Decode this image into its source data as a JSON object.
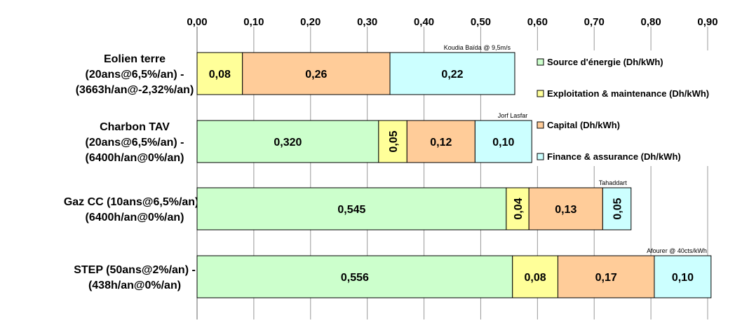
{
  "chart_data": {
    "type": "bar",
    "orientation": "horizontal",
    "stacked": true,
    "x_axis_position": "top",
    "xlim": [
      0,
      0.9
    ],
    "x_ticks": [
      "0,00",
      "0,10",
      "0,20",
      "0,30",
      "0,40",
      "0,50",
      "0,60",
      "0,70",
      "0,80",
      "0,90"
    ],
    "grid": true,
    "legend_position": "right",
    "categories": [
      [
        "Eolien terre",
        "(20ans@6,5%/an) -",
        "(3663h/an@-2,32%/an)"
      ],
      [
        "Charbon TAV",
        "(20ans@6,5%/an) -",
        "(6400h/an@0%/an)"
      ],
      [
        "Gaz CC (10ans@6,5%/an) -",
        "(6400h/an@0%/an)"
      ],
      [
        "STEP (50ans@2%/an) -",
        "(438h/an@0%/an)"
      ]
    ],
    "annotations": [
      "Koudia Baïda @ 9,5m/s",
      "Jorf Lasfar",
      "Tahaddart",
      "Afourer @ 40cts/kWh"
    ],
    "series": [
      {
        "name": "Source d'énergie (Dh/kWh)",
        "color": "#ccffcc",
        "values": [
          0,
          0.32,
          0.545,
          0.556
        ],
        "labels": [
          "",
          "0,320",
          "0,545",
          "0,556"
        ]
      },
      {
        "name": "Exploitation & maintenance (Dh/kWh)",
        "color": "#ffff99",
        "values": [
          0.08,
          0.05,
          0.04,
          0.08
        ],
        "labels": [
          "0,08",
          "0,05",
          "0,04",
          "0,08"
        ]
      },
      {
        "name": "Capital (Dh/kWh)",
        "color": "#ffcc99",
        "values": [
          0.26,
          0.12,
          0.13,
          0.17
        ],
        "labels": [
          "0,26",
          "0,12",
          "0,13",
          "0,17"
        ]
      },
      {
        "name": "Finance & assurance (Dh/kWh)",
        "color": "#ccffff",
        "values": [
          0.22,
          0.1,
          0.05,
          0.1
        ],
        "labels": [
          "0,22",
          "0,10",
          "0,05",
          "0,10"
        ]
      }
    ]
  }
}
